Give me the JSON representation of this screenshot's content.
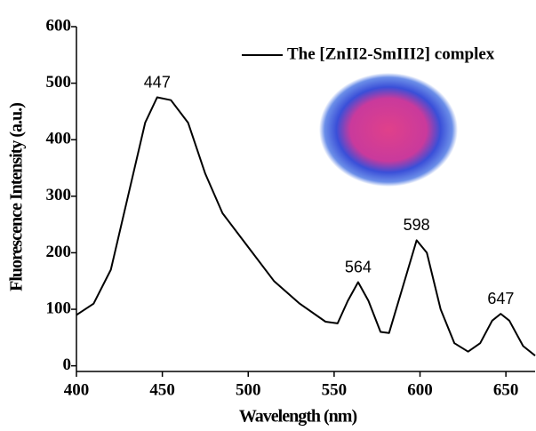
{
  "chart_data": {
    "type": "line",
    "xlabel": "Wavelength (nm)",
    "ylabel": "Fluorescence Intensity (a.u.)",
    "x": [
      400,
      410,
      420,
      430,
      440,
      447,
      455,
      465,
      475,
      485,
      500,
      515,
      530,
      545,
      552,
      558,
      564,
      570,
      577,
      582,
      590,
      598,
      604,
      612,
      620,
      628,
      635,
      642,
      647,
      652,
      660,
      667
    ],
    "series": [
      {
        "name": "The [ZnII2-SmIII2] complex",
        "color": "#000000",
        "values": [
          90,
          110,
          170,
          300,
          430,
          475,
          470,
          430,
          340,
          270,
          210,
          150,
          110,
          78,
          75,
          115,
          148,
          115,
          60,
          58,
          140,
          222,
          200,
          100,
          40,
          25,
          40,
          80,
          92,
          80,
          35,
          18
        ]
      }
    ],
    "annotations": [
      {
        "label": "447",
        "x": 447,
        "y": 475
      },
      {
        "label": "564",
        "x": 564,
        "y": 148
      },
      {
        "label": "598",
        "x": 598,
        "y": 222
      },
      {
        "label": "647",
        "x": 647,
        "y": 92
      }
    ],
    "xlim": [
      400,
      667
    ],
    "ylim": [
      -10,
      600
    ],
    "xticks": [
      400,
      450,
      500,
      550,
      600,
      650
    ],
    "yticks": [
      0,
      100,
      200,
      300,
      400,
      500,
      600
    ],
    "legend": "upper right"
  }
}
